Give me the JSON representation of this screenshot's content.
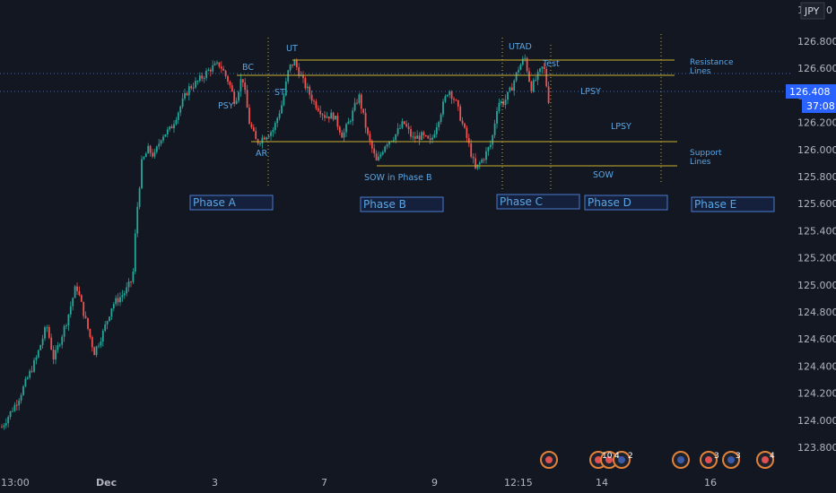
{
  "chart_data": {
    "type": "candlestick",
    "symbol_currency": "JPY",
    "price_axis": {
      "ylim": [
        123.7,
        127.0
      ],
      "ticks": [
        126.8,
        126.6,
        126.4,
        126.2,
        126.0,
        125.8,
        125.6,
        125.4,
        125.2,
        125.0,
        124.8,
        124.6,
        124.4,
        124.2,
        124.0,
        123.8
      ],
      "top_partial_tick_fragment": "1",
      "top_partial_tick_suffix": "0",
      "last_price": "126.408",
      "countdown": "37:08"
    },
    "time_axis": {
      "ticks": [
        "13:00",
        "Dec",
        "3",
        "7",
        "9",
        "12:15",
        "14",
        "16"
      ]
    },
    "levels": {
      "resistance_upper": 126.66,
      "resistance_lower": 126.55,
      "support_upper": 126.05,
      "support_lower": 125.87,
      "last_price_line": 126.408
    },
    "annotations": [
      {
        "text": "BC",
        "price": 126.58
      },
      {
        "text": "UT",
        "price": 126.72
      },
      {
        "text": "UTAD",
        "price": 126.72
      },
      {
        "text": "PSY",
        "price": 126.27
      },
      {
        "text": "ST",
        "price": 126.37
      },
      {
        "text": "AR",
        "price": 125.94
      },
      {
        "text": "SOW in Phase B",
        "price": 125.77
      },
      {
        "text": "Test",
        "price": 126.6
      },
      {
        "text": "LPSY",
        "price": 126.4
      },
      {
        "text": "LPSY",
        "price": 126.15
      },
      {
        "text": "SOW",
        "price": 125.8
      },
      {
        "text": "Resistance",
        "price": 126.64
      },
      {
        "text": "Lines",
        "price": 126.57
      },
      {
        "text": "Support",
        "price": 125.96
      },
      {
        "text": "Lines",
        "price": 125.89
      }
    ],
    "phases": [
      "Phase A",
      "Phase B",
      "Phase C",
      "Phase D",
      "Phase E"
    ],
    "event_markers": [
      "10",
      "4",
      "2",
      "3",
      "3",
      "4"
    ],
    "colors": {
      "background": "#131722",
      "up": "#26a69a",
      "down": "#ef5350",
      "level_line": "#c9b02f",
      "annotation": "#5aa7e6",
      "axis_text": "#b2b5be",
      "price_label": "#2962ff"
    },
    "grid": false
  }
}
